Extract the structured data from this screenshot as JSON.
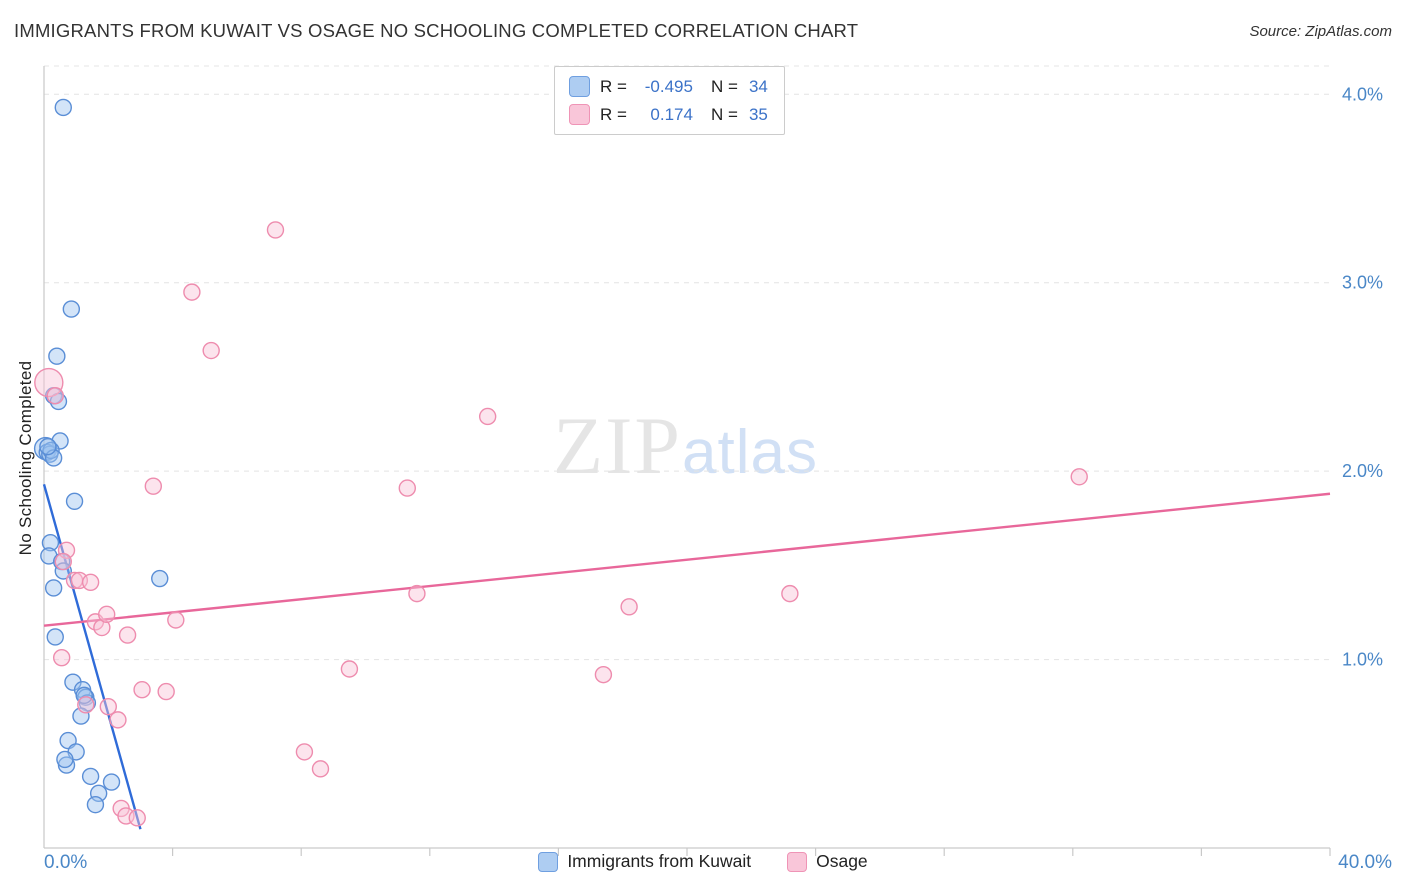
{
  "header": {
    "title": "IMMIGRANTS FROM KUWAIT VS OSAGE NO SCHOOLING COMPLETED CORRELATION CHART",
    "source": "Source: ZipAtlas.com"
  },
  "watermark": {
    "zip": "ZIP",
    "atlas": "atlas"
  },
  "axes": {
    "ylabel": "No Schooling Completed",
    "x_min_label": "0.0%",
    "x_max_label": "40.0%",
    "y_tick_labels": [
      "1.0%",
      "2.0%",
      "3.0%",
      "4.0%"
    ]
  },
  "legend_box": {
    "rows": [
      {
        "r_label": "R =",
        "r_value": "-0.495",
        "n_label": "N =",
        "n_value": "34",
        "fill": "#aecdf2",
        "stroke": "#6f9fe0"
      },
      {
        "r_label": "R =",
        "r_value": "0.174",
        "n_label": "N =",
        "n_value": "35",
        "fill": "#f9c6d9",
        "stroke": "#ef94b6"
      }
    ]
  },
  "bottom_legend": [
    {
      "label": "Immigrants from Kuwait",
      "fill": "#aecdf2",
      "stroke": "#6f9fe0"
    },
    {
      "label": "Osage",
      "fill": "#f9c6d9",
      "stroke": "#ef94b6"
    }
  ],
  "colors": {
    "accent_text": "#4a87c7",
    "grid": "#e4e4e4",
    "axis": "#c9c9c9"
  },
  "chart_data": {
    "type": "scatter",
    "title": "Immigrants from Kuwait vs Osage No Schooling Completed",
    "xlabel": "",
    "ylabel": "No Schooling Completed",
    "xlim": [
      0,
      40
    ],
    "ylim": [
      0,
      4.15
    ],
    "x_ticks": [
      4,
      8,
      12,
      16,
      20,
      24,
      28,
      32,
      36,
      40
    ],
    "y_gridlines": [
      1,
      2,
      3,
      4
    ],
    "grid": true,
    "legend_position": "top-center",
    "series": [
      {
        "name": "Immigrants from Kuwait",
        "R": -0.495,
        "N": 34,
        "fill": "#9ec4ef",
        "stroke": "#5a8ed6",
        "line_color": "#2f6bd8",
        "trend": {
          "x1": 0,
          "y1": 1.93,
          "x2": 3.0,
          "y2": 0.1
        },
        "points": [
          [
            0.6,
            3.93
          ],
          [
            0.85,
            2.86
          ],
          [
            0.4,
            2.61
          ],
          [
            0.3,
            2.4
          ],
          [
            0.45,
            2.37
          ],
          [
            0.5,
            2.16
          ],
          [
            0.05,
            2.12,
            11
          ],
          [
            0.1,
            2.1
          ],
          [
            0.18,
            2.09
          ],
          [
            0.22,
            2.11
          ],
          [
            0.3,
            2.07
          ],
          [
            0.12,
            2.13
          ],
          [
            0.95,
            1.84
          ],
          [
            0.2,
            1.62
          ],
          [
            0.15,
            1.55
          ],
          [
            0.55,
            1.52
          ],
          [
            0.6,
            1.47
          ],
          [
            0.3,
            1.38
          ],
          [
            3.6,
            1.43
          ],
          [
            0.35,
            1.12
          ],
          [
            0.9,
            0.88
          ],
          [
            1.2,
            0.84
          ],
          [
            1.3,
            0.8
          ],
          [
            1.35,
            0.77
          ],
          [
            1.15,
            0.7
          ],
          [
            0.75,
            0.57
          ],
          [
            1.0,
            0.51
          ],
          [
            0.7,
            0.44
          ],
          [
            1.45,
            0.38
          ],
          [
            2.1,
            0.35
          ],
          [
            1.7,
            0.29
          ],
          [
            1.6,
            0.23
          ],
          [
            0.65,
            0.47
          ],
          [
            1.25,
            0.81
          ]
        ]
      },
      {
        "name": "Osage",
        "R": 0.174,
        "N": 35,
        "fill": "#f8c3d6",
        "stroke": "#ee8cae",
        "line_color": "#e8679a",
        "trend": {
          "x1": 0,
          "y1": 1.18,
          "x2": 40,
          "y2": 1.88
        },
        "points": [
          [
            0.15,
            2.47,
            14
          ],
          [
            0.35,
            2.4
          ],
          [
            7.2,
            3.28
          ],
          [
            4.6,
            2.95
          ],
          [
            5.2,
            2.64
          ],
          [
            13.8,
            2.29
          ],
          [
            3.4,
            1.92
          ],
          [
            11.3,
            1.91
          ],
          [
            32.2,
            1.97
          ],
          [
            0.7,
            1.58
          ],
          [
            0.6,
            1.52
          ],
          [
            0.95,
            1.42
          ],
          [
            1.1,
            1.42
          ],
          [
            1.6,
            1.2
          ],
          [
            1.8,
            1.17
          ],
          [
            1.95,
            1.24
          ],
          [
            2.6,
            1.13
          ],
          [
            4.1,
            1.21
          ],
          [
            11.6,
            1.35
          ],
          [
            18.2,
            1.28
          ],
          [
            23.2,
            1.35
          ],
          [
            0.55,
            1.01
          ],
          [
            9.5,
            0.95
          ],
          [
            17.4,
            0.92
          ],
          [
            3.05,
            0.84
          ],
          [
            3.8,
            0.83
          ],
          [
            1.3,
            0.76
          ],
          [
            2.0,
            0.75
          ],
          [
            2.3,
            0.68
          ],
          [
            8.1,
            0.51
          ],
          [
            8.6,
            0.42
          ],
          [
            2.4,
            0.21
          ],
          [
            2.55,
            0.17
          ],
          [
            2.9,
            0.16
          ],
          [
            1.45,
            1.41
          ]
        ]
      }
    ]
  }
}
